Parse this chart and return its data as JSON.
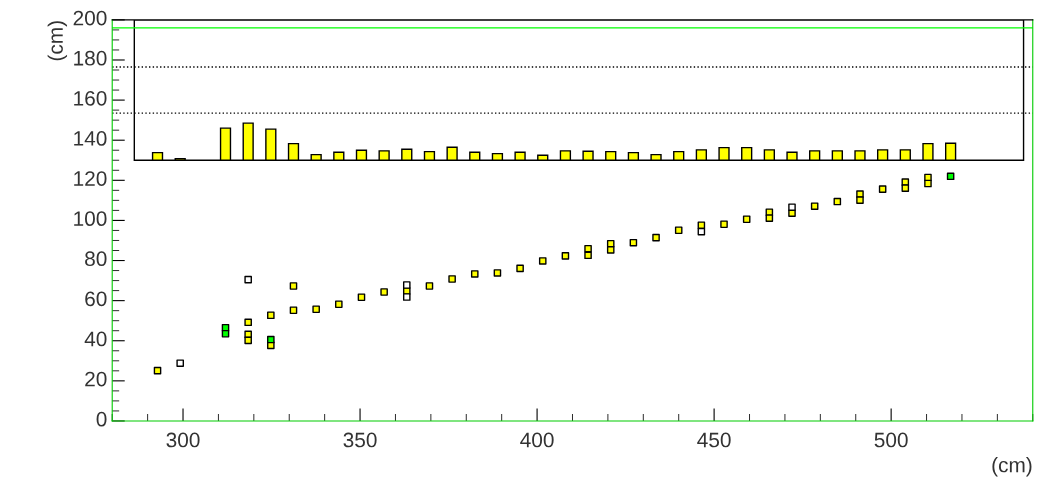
{
  "chart_data": {
    "type": "scatter",
    "xlabel": "(cm)",
    "ylabel": "(cm)",
    "xlim": [
      280,
      540
    ],
    "ylim": [
      0,
      200
    ],
    "xticks": [
      300,
      350,
      400,
      450,
      500
    ],
    "yticks": [
      0,
      20,
      40,
      60,
      80,
      100,
      120,
      140,
      160,
      180,
      200
    ],
    "grid": false,
    "marker": "square",
    "ref_lines": [
      {
        "axis": "y",
        "value": 153.5,
        "color": "#000000",
        "line_style": "dotted"
      },
      {
        "axis": "y",
        "value": 176.5,
        "color": "#000000",
        "line_style": "dotted"
      },
      {
        "axis": "y",
        "value": 196,
        "color": "#00ff00",
        "line_style": "solid"
      }
    ],
    "series": [
      {
        "type": "bar",
        "color": "#ffff00",
        "x": [
          292.8,
          299.2,
          312.0,
          318.4,
          324.8,
          331.2,
          337.6,
          344.0,
          350.4,
          356.8,
          363.2,
          369.6,
          376.0,
          382.4,
          388.8,
          395.2,
          401.6,
          408.0,
          414.4,
          420.8,
          427.2,
          433.6,
          440.0,
          446.4,
          452.8,
          459.2,
          465.6,
          472.0,
          478.4,
          484.8,
          491.2,
          497.6,
          504.0,
          510.4,
          516.8
        ],
        "base": [
          130,
          130,
          130,
          130,
          130,
          130,
          130,
          130,
          130,
          130,
          130,
          130,
          130,
          130,
          130,
          130,
          130,
          130,
          130,
          130,
          130,
          130,
          130,
          130,
          130,
          130,
          130,
          130,
          130,
          130,
          130,
          130,
          130,
          130,
          130
        ],
        "values": [
          3.8,
          0.8,
          16.0,
          18.5,
          15.5,
          8.3,
          2.8,
          4.0,
          5.0,
          4.7,
          5.5,
          4.3,
          6.5,
          4.0,
          3.3,
          4.0,
          2.5,
          4.7,
          4.5,
          4.3,
          3.8,
          2.8,
          4.3,
          5.2,
          6.3,
          6.3,
          5.2,
          4.0,
          4.7,
          4.7,
          4.7,
          5.2,
          5.2,
          8.3,
          8.5
        ]
      },
      {
        "color": "#ffff00",
        "x": [
          292.8,
          318.4,
          318.4,
          318.4,
          324.8,
          324.8,
          331.2,
          331.2,
          337.6,
          344.0,
          350.4,
          356.8,
          363.2,
          369.6,
          376.0,
          382.4,
          388.8,
          395.2,
          401.6,
          408.0,
          414.4,
          414.4,
          420.8,
          420.8,
          427.2,
          433.6,
          440.0,
          446.4,
          452.8,
          459.2,
          465.6,
          465.6,
          472.0,
          478.4,
          484.8,
          491.2,
          491.2,
          497.6,
          504.0,
          504.0,
          510.4,
          510.4
        ],
        "values": [
          25.1,
          49.2,
          43.2,
          40.2,
          52.7,
          37.7,
          67.3,
          55.2,
          55.7,
          58.2,
          61.7,
          64.3,
          64.8,
          67.3,
          70.8,
          73.3,
          73.8,
          76.1,
          79.8,
          82.3,
          85.9,
          82.6,
          88.4,
          85.3,
          88.9,
          91.4,
          95.1,
          97.6,
          98.1,
          100.6,
          104.1,
          101.1,
          103.6,
          107.1,
          109.4,
          113.1,
          110.1,
          115.6,
          119.1,
          116.1,
          121.4,
          118.4
        ]
      },
      {
        "color": "#ffffff",
        "x": [
          299.2,
          318.4,
          363.2,
          363.2,
          446.4,
          472.0
        ],
        "values": [
          28.8,
          70.5,
          67.8,
          61.8,
          94.4,
          106.6
        ]
      },
      {
        "color": "#00ff00",
        "x": [
          312.0,
          312.0,
          324.8,
          516.8
        ],
        "values": [
          46.5,
          43.5,
          40.6,
          122.0
        ]
      }
    ]
  }
}
